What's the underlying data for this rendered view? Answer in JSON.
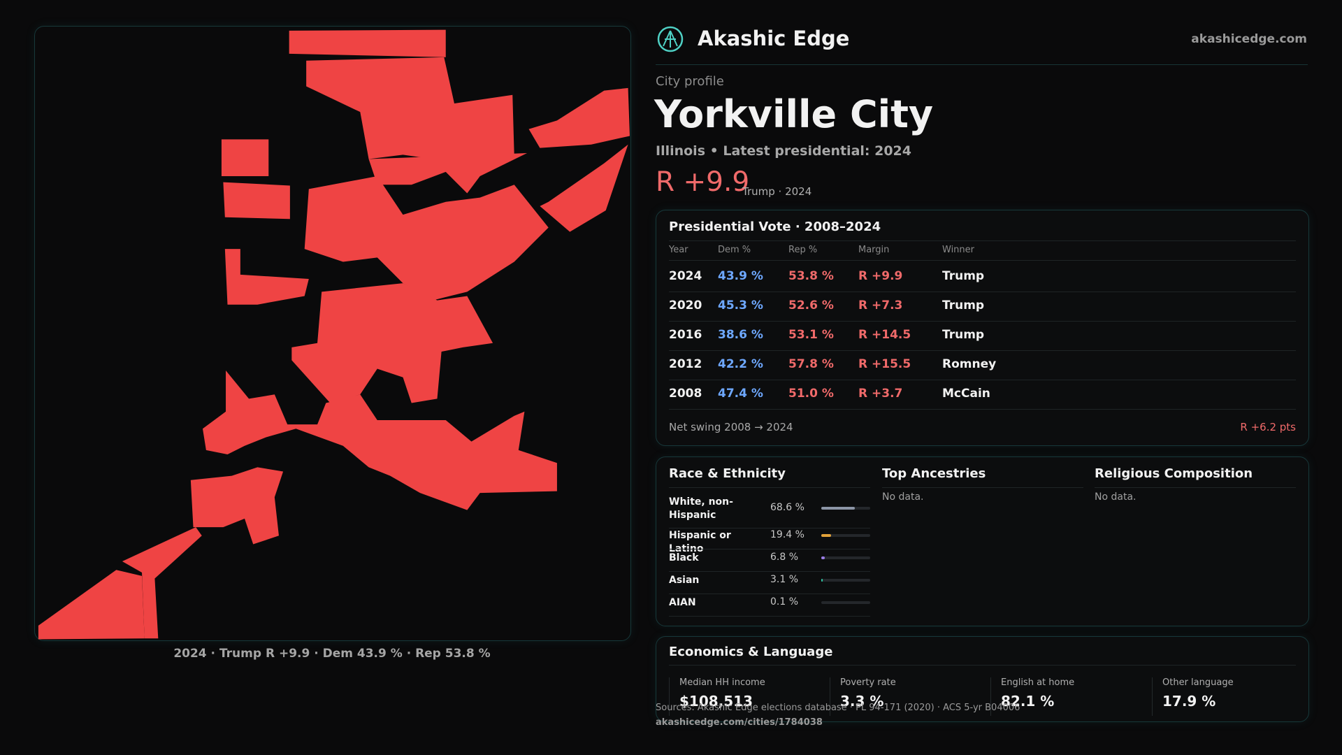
{
  "header": {
    "brand": "Akashic Edge",
    "site": "akashicedge.com"
  },
  "profile": {
    "kicker": "City profile",
    "title": "Yorkville City",
    "subtitle": "Illinois • Latest presidential: 2024",
    "margin": "R +9.9",
    "margin_note": "Trump · 2024"
  },
  "map": {
    "caption": "2024 · Trump R +9.9 · Dem 43.9 % · Rep 53.8 %"
  },
  "vote": {
    "title": "Presidential Vote · 2008–2024",
    "columns": [
      "Year",
      "Dem %",
      "Rep %",
      "Margin",
      "Winner"
    ],
    "rows": [
      [
        "2024",
        "43.9 %",
        "53.8 %",
        "R +9.9",
        "Trump"
      ],
      [
        "2020",
        "45.3 %",
        "52.6 %",
        "R +7.3",
        "Trump"
      ],
      [
        "2016",
        "38.6 %",
        "53.1 %",
        "R +14.5",
        "Trump"
      ],
      [
        "2012",
        "42.2 %",
        "57.8 %",
        "R +15.5",
        "Romney"
      ],
      [
        "2008",
        "47.4 %",
        "51.0 %",
        "R +3.7",
        "McCain"
      ]
    ],
    "swing_label": "Net swing 2008 → 2024",
    "swing_value": "R +6.2 pts"
  },
  "race": {
    "title": "Race & Ethnicity",
    "max": 100,
    "rows": [
      {
        "name": "White, non-Hispanic",
        "value": 68.6,
        "label": "68.6 %",
        "color": "#8c95a6"
      },
      {
        "name": "Hispanic or Latino",
        "value": 19.4,
        "label": "19.4 %",
        "color": "#e2a23a"
      },
      {
        "name": "Black",
        "value": 6.8,
        "label": "6.8 %",
        "color": "#9a7de6"
      },
      {
        "name": "Asian",
        "value": 3.1,
        "label": "3.1 %",
        "color": "#2fc4a2"
      },
      {
        "name": "AIAN",
        "value": 0.1,
        "label": "0.1 %",
        "color": "#8c95a6"
      }
    ]
  },
  "ancestries": {
    "title": "Top Ancestries",
    "empty": "No data."
  },
  "religion": {
    "title": "Religious Composition",
    "empty": "No data."
  },
  "economics": {
    "title": "Economics & Language",
    "stats": [
      {
        "label": "Median HH income",
        "value": "$108,513"
      },
      {
        "label": "Poverty rate",
        "value": "3.3 %"
      },
      {
        "label": "English at home",
        "value": "82.1 %"
      },
      {
        "label": "Other language",
        "value": "17.9 %"
      }
    ]
  },
  "footer": {
    "sources": "Sources: Akashic Edge elections database · PL 94-171 (2020) · ACS 5-yr B04006",
    "url": "akashicedge.com/cities/1784038"
  }
}
